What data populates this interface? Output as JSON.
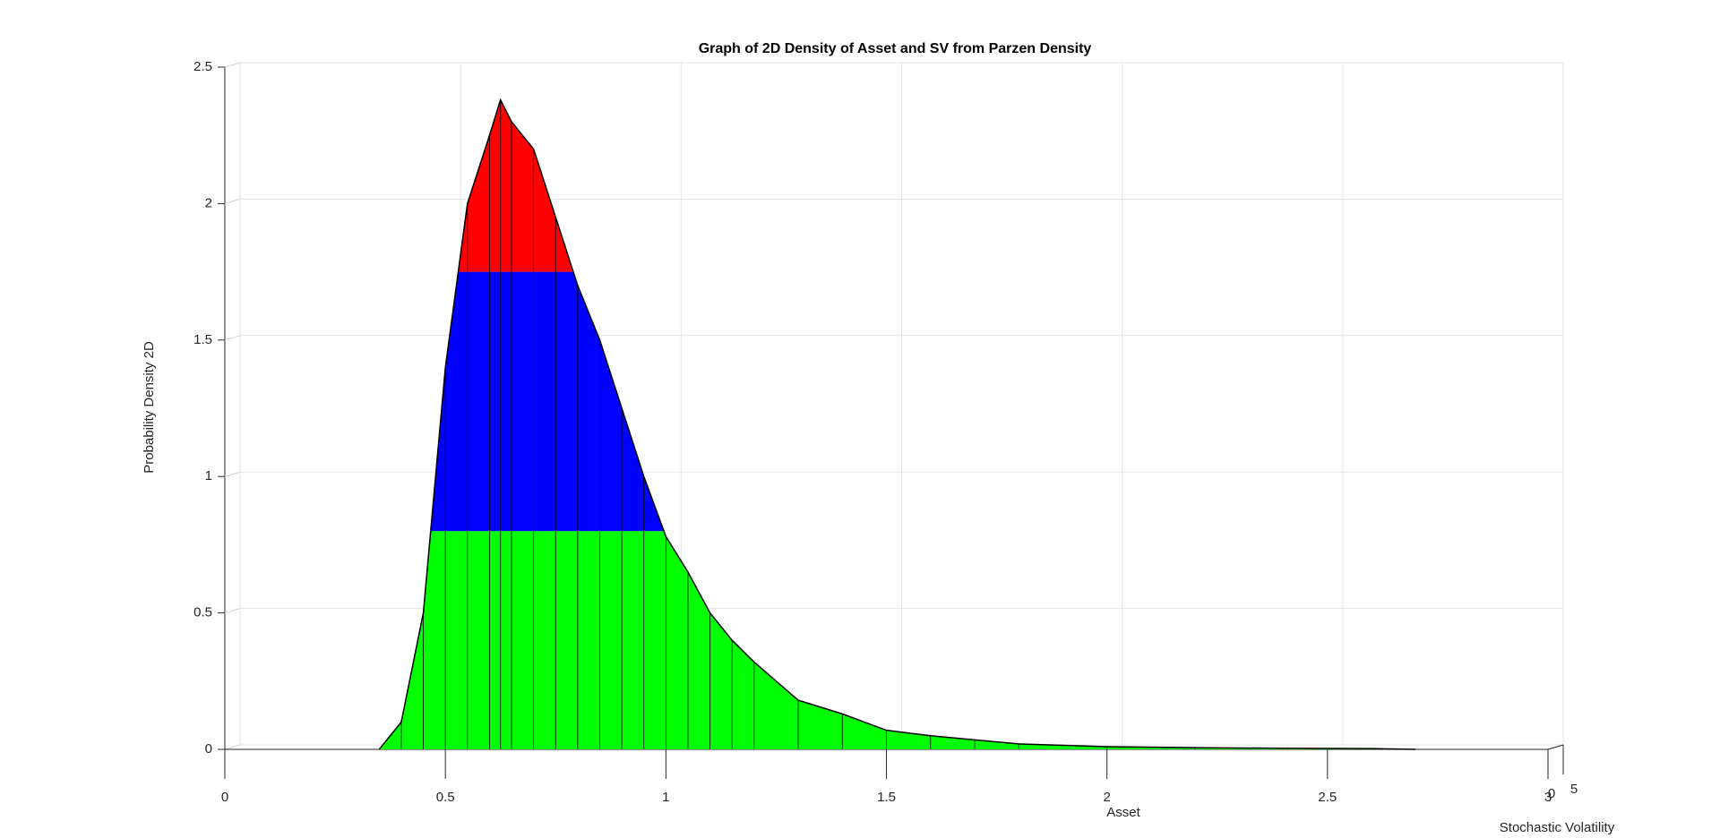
{
  "chart_data": {
    "type": "surface",
    "title": "Graph of 2D Density of Asset and SV from Parzen Density",
    "xlabel": "Asset",
    "ylabel": "Probability Density 2D",
    "zlabel": "Stochastic Volatility",
    "x": [
      0.35,
      0.4,
      0.45,
      0.5,
      0.55,
      0.6,
      0.625,
      0.65,
      0.7,
      0.75,
      0.8,
      0.85,
      0.9,
      0.95,
      1.0,
      1.05,
      1.1,
      1.15,
      1.2,
      1.3,
      1.4,
      1.5,
      1.6,
      1.7,
      1.8,
      2.0,
      2.2,
      2.4,
      2.6,
      2.7
    ],
    "values": [
      0,
      0.1,
      0.5,
      1.4,
      2.0,
      2.25,
      2.38,
      2.3,
      2.2,
      1.95,
      1.7,
      1.5,
      1.25,
      1.0,
      0.78,
      0.65,
      0.5,
      0.4,
      0.32,
      0.18,
      0.13,
      0.07,
      0.05,
      0.035,
      0.02,
      0.01,
      0.006,
      0.004,
      0.003,
      0
    ],
    "color_levels": [
      0.8,
      1.75
    ],
    "colors": [
      "#00ff00",
      "#0000ff",
      "#ff0000"
    ],
    "xlim": [
      0,
      3
    ],
    "xticks": [
      0,
      0.5,
      1,
      1.5,
      2,
      2.5,
      3
    ],
    "ylim": [
      0,
      2.5
    ],
    "yticks": [
      0,
      0.5,
      1,
      1.5,
      2,
      2.5
    ],
    "zlim": [
      0,
      5
    ],
    "zticks": [
      0,
      5
    ],
    "grid": true
  }
}
